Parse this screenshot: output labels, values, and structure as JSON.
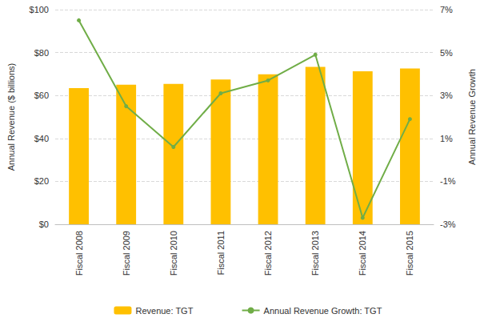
{
  "chart_data": {
    "type": "bar",
    "categories": [
      "Fiscal 2008",
      "Fiscal 2009",
      "Fiscal 2010",
      "Fiscal 2011",
      "Fiscal 2012",
      "Fiscal 2013",
      "Fiscal 2014",
      "Fiscal 2015"
    ],
    "series": [
      {
        "name": "Revenue: TGT",
        "type": "bar",
        "color": "#FFC000",
        "axis": "y",
        "values": [
          63.4,
          65.0,
          65.4,
          67.4,
          69.9,
          73.3,
          71.3,
          72.6
        ]
      },
      {
        "name": "Annual Revenue Growth: TGT",
        "type": "line",
        "color": "#70AD47",
        "axis": "y2",
        "marker": "circle",
        "line_style": "solid",
        "values": [
          6.5,
          2.5,
          0.6,
          3.1,
          3.7,
          4.9,
          -2.7,
          1.9
        ]
      }
    ],
    "ylabel": "Annual Revenue ($ billions)",
    "y2label": "Annual Revenue Growth",
    "ylim": [
      0,
      100
    ],
    "yticks": [
      {
        "value": 0,
        "label": "$0"
      },
      {
        "value": 20,
        "label": "$20"
      },
      {
        "value": 40,
        "label": "$40"
      },
      {
        "value": 60,
        "label": "$60"
      },
      {
        "value": 80,
        "label": "$80"
      },
      {
        "value": 100,
        "label": "$100"
      }
    ],
    "y2lim": [
      -3,
      7
    ],
    "y2ticks": [
      {
        "value": -3,
        "label": "-3%"
      },
      {
        "value": -1,
        "label": "-1%"
      },
      {
        "value": 1,
        "label": "1%"
      },
      {
        "value": 3,
        "label": "3%"
      },
      {
        "value": 5,
        "label": "5%"
      },
      {
        "value": 7,
        "label": "7%"
      }
    ],
    "grid": true,
    "legend": "bottom"
  }
}
